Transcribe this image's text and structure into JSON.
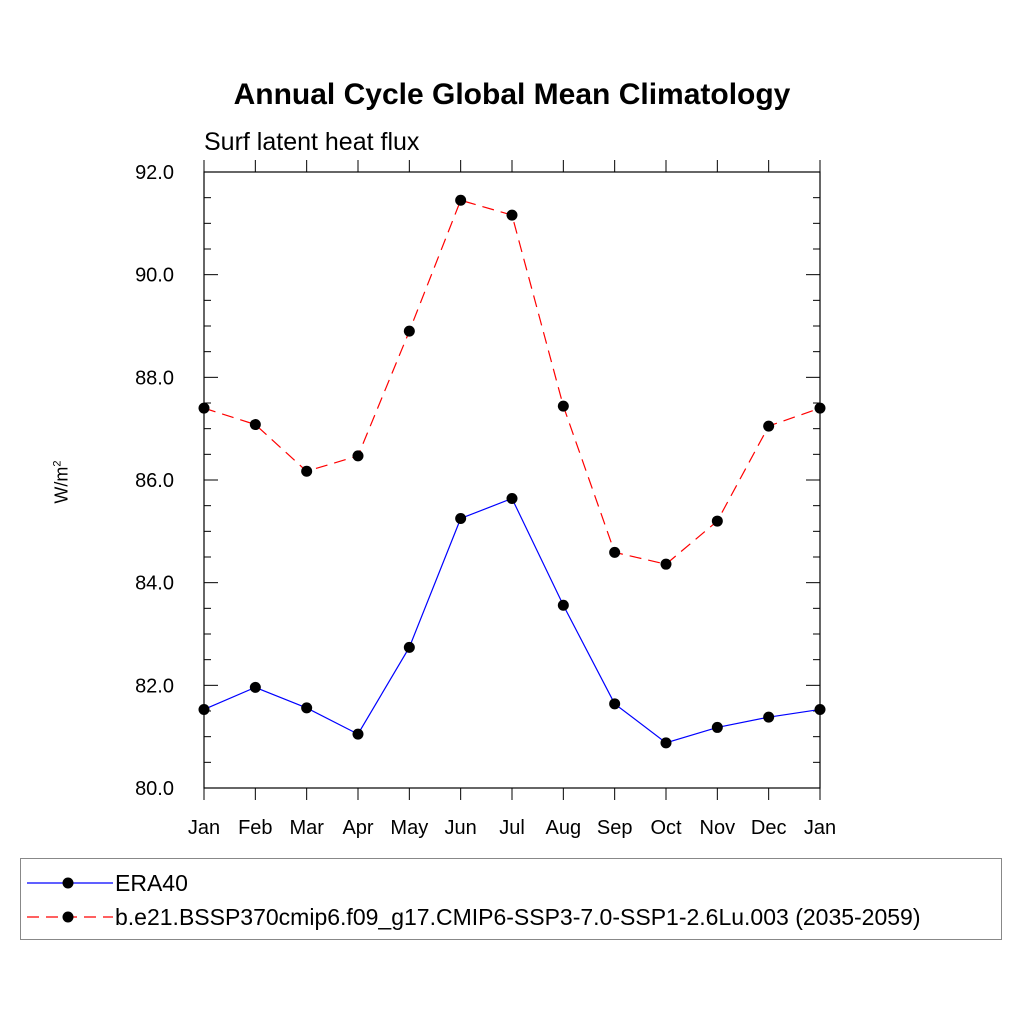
{
  "title": "Annual Cycle Global Mean Climatology",
  "subtitle": "Surf latent heat flux",
  "ylabel_base": "W/m",
  "ylabel_sup": "2",
  "legend": [
    {
      "label": "ERA40",
      "color": "#0000ff",
      "dash": "solid"
    },
    {
      "label": "b.e21.BSSP370cmip6.f09_g17.CMIP6-SSP3-7.0-SSP1-2.6Lu.003 (2035-2059)",
      "color": "#ff0000",
      "dash": "dashed"
    }
  ],
  "chart_data": {
    "type": "line",
    "title": "Annual Cycle Global Mean Climatology",
    "subtitle": "Surf latent heat flux",
    "xlabel": "",
    "ylabel": "W/m2",
    "categories": [
      "Jan",
      "Feb",
      "Mar",
      "Apr",
      "May",
      "Jun",
      "Jul",
      "Aug",
      "Sep",
      "Oct",
      "Nov",
      "Dec",
      "Jan"
    ],
    "ylim": [
      80,
      92
    ],
    "yticks": [
      "80.0",
      "82.0",
      "84.0",
      "86.0",
      "88.0",
      "90.0",
      "92.0"
    ],
    "grid": false,
    "legend_position": "bottom",
    "series": [
      {
        "name": "ERA40",
        "color": "#0000ff",
        "dash": "solid",
        "values": [
          81.53,
          81.96,
          81.56,
          81.05,
          82.74,
          85.25,
          85.64,
          83.56,
          81.64,
          80.88,
          81.18,
          81.38,
          81.53
        ]
      },
      {
        "name": "b.e21.BSSP370cmip6.f09_g17.CMIP6-SSP3-7.0-SSP1-2.6Lu.003 (2035-2059)",
        "color": "#ff0000",
        "dash": "dashed",
        "values": [
          87.4,
          87.08,
          86.17,
          86.47,
          88.9,
          91.45,
          91.16,
          87.44,
          84.59,
          84.36,
          85.2,
          87.05,
          87.4
        ]
      }
    ]
  }
}
